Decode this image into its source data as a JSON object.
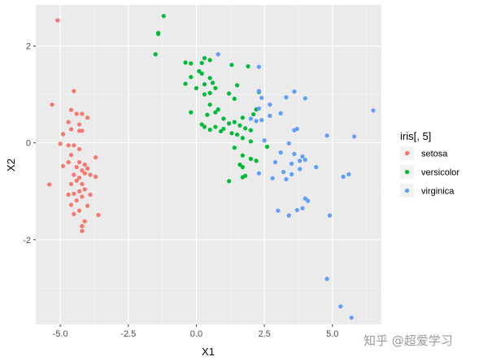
{
  "chart_data": {
    "type": "scatter",
    "xlabel": "X1",
    "ylabel": "X2",
    "xlim": [
      -5.9,
      6.8
    ],
    "ylim": [
      -3.75,
      2.85
    ],
    "xticks": [
      -5.0,
      -2.5,
      0.0,
      2.5,
      5.0
    ],
    "xtick_labels": [
      "-5.0",
      "-2.5",
      "0.0",
      "2.5",
      "5.0"
    ],
    "yticks": [
      -2,
      0,
      2
    ],
    "ytick_labels": [
      "-2",
      "0",
      "2"
    ],
    "grid": true,
    "background": "#ebebeb",
    "legend": {
      "title": "iris[, 5]",
      "position": "right"
    },
    "series": [
      {
        "name": "setosa",
        "color": "#f8766d",
        "points": [
          [
            -5.1,
            2.53
          ],
          [
            -4.5,
            1.07
          ],
          [
            -5.3,
            0.79
          ],
          [
            -4.6,
            0.68
          ],
          [
            -4.4,
            0.6
          ],
          [
            -4.2,
            0.6
          ],
          [
            -4.0,
            0.52
          ],
          [
            -4.7,
            0.43
          ],
          [
            -4.3,
            0.38
          ],
          [
            -4.6,
            0.28
          ],
          [
            -4.3,
            0.25
          ],
          [
            -4.2,
            0.25
          ],
          [
            -4.9,
            0.18
          ],
          [
            -5.0,
            -0.02
          ],
          [
            -4.7,
            -0.05
          ],
          [
            -4.5,
            -0.05
          ],
          [
            -4.3,
            -0.13
          ],
          [
            -4.6,
            -0.25
          ],
          [
            -3.7,
            -0.3
          ],
          [
            -4.7,
            -0.4
          ],
          [
            -4.3,
            -0.4
          ],
          [
            -4.1,
            -0.45
          ],
          [
            -4.9,
            -0.48
          ],
          [
            -4.4,
            -0.5
          ],
          [
            -4.0,
            -0.53
          ],
          [
            -4.2,
            -0.57
          ],
          [
            -4.5,
            -0.66
          ],
          [
            -4.1,
            -0.63
          ],
          [
            -3.9,
            -0.66
          ],
          [
            -3.7,
            -0.7
          ],
          [
            -4.3,
            -0.72
          ],
          [
            -4.4,
            -0.78
          ],
          [
            -4.2,
            -0.85
          ],
          [
            -4.6,
            -0.85
          ],
          [
            -5.4,
            -0.86
          ],
          [
            -4.1,
            -0.96
          ],
          [
            -4.3,
            -1.0
          ],
          [
            -4.5,
            -1.05
          ],
          [
            -4.7,
            -1.07
          ],
          [
            -3.9,
            -1.07
          ],
          [
            -4.2,
            -1.11
          ],
          [
            -4.4,
            -1.19
          ],
          [
            -4.6,
            -1.28
          ],
          [
            -4.0,
            -1.3
          ],
          [
            -4.3,
            -1.4
          ],
          [
            -4.5,
            -1.47
          ],
          [
            -3.6,
            -1.49
          ],
          [
            -4.1,
            -1.62
          ],
          [
            -4.2,
            -1.72
          ],
          [
            -4.2,
            -1.82
          ]
        ]
      },
      {
        "name": "versicolor",
        "color": "#00ba38",
        "points": [
          [
            -1.2,
            2.62
          ],
          [
            -1.4,
            2.25
          ],
          [
            -1.4,
            2.27
          ],
          [
            -1.5,
            1.83
          ],
          [
            0.3,
            1.75
          ],
          [
            0.5,
            1.71
          ],
          [
            -0.4,
            1.66
          ],
          [
            -0.2,
            1.64
          ],
          [
            0.2,
            1.65
          ],
          [
            1.9,
            1.58
          ],
          [
            1.3,
            1.61
          ],
          [
            0.1,
            1.48
          ],
          [
            -0.2,
            1.36
          ],
          [
            0.5,
            1.34
          ],
          [
            0.2,
            1.43
          ],
          [
            -0.4,
            1.22
          ],
          [
            0.3,
            1.21
          ],
          [
            0.6,
            1.24
          ],
          [
            0.7,
            1.13
          ],
          [
            1.5,
            1.19
          ],
          [
            0.0,
            1.13
          ],
          [
            0.3,
            1.0
          ],
          [
            0.5,
            1.03
          ],
          [
            1.2,
            1.02
          ],
          [
            1.4,
            0.91
          ],
          [
            2.3,
            1.05
          ],
          [
            0.5,
            0.79
          ],
          [
            0.8,
            0.69
          ],
          [
            0.7,
            0.63
          ],
          [
            -0.2,
            0.63
          ],
          [
            0.4,
            0.58
          ],
          [
            1.0,
            0.5
          ],
          [
            1.7,
            0.52
          ],
          [
            2.1,
            0.59
          ],
          [
            2.2,
            0.69
          ],
          [
            1.4,
            0.43
          ],
          [
            0.2,
            0.38
          ],
          [
            0.3,
            0.33
          ],
          [
            0.7,
            0.33
          ],
          [
            1.0,
            0.29
          ],
          [
            1.2,
            0.4
          ],
          [
            1.6,
            0.36
          ],
          [
            1.8,
            0.3
          ],
          [
            2.0,
            0.26
          ],
          [
            0.5,
            0.27
          ],
          [
            0.9,
            0.24
          ],
          [
            1.3,
            0.2
          ],
          [
            1.5,
            0.17
          ],
          [
            1.7,
            0.1
          ],
          [
            2.0,
            0.03
          ],
          [
            1.4,
            -0.1
          ],
          [
            2.6,
            -0.08
          ],
          [
            1.7,
            -0.26
          ],
          [
            2.0,
            -0.33
          ],
          [
            2.2,
            -0.37
          ],
          [
            1.6,
            -0.45
          ],
          [
            1.7,
            -0.5
          ],
          [
            1.8,
            -0.68
          ],
          [
            1.2,
            -0.79
          ],
          [
            1.7,
            -0.71
          ]
        ]
      },
      {
        "name": "virginica",
        "color": "#619cff",
        "points": [
          [
            0.8,
            1.83
          ],
          [
            2.3,
            1.57
          ],
          [
            3.6,
            1.06
          ],
          [
            2.3,
            1.07
          ],
          [
            2.4,
            0.93
          ],
          [
            3.3,
            0.94
          ],
          [
            4.0,
            0.92
          ],
          [
            2.7,
            0.79
          ],
          [
            6.5,
            0.67
          ],
          [
            2.3,
            0.71
          ],
          [
            2.7,
            0.56
          ],
          [
            3.1,
            0.61
          ],
          [
            2.0,
            0.5
          ],
          [
            2.4,
            0.47
          ],
          [
            2.2,
            0.45
          ],
          [
            3.6,
            0.26
          ],
          [
            3.7,
            0.29
          ],
          [
            4.8,
            0.15
          ],
          [
            5.8,
            0.13
          ],
          [
            2.5,
            0.05
          ],
          [
            3.4,
            -0.01
          ],
          [
            3.1,
            -0.2
          ],
          [
            3.6,
            -0.23
          ],
          [
            3.9,
            -0.28
          ],
          [
            4.0,
            -0.35
          ],
          [
            3.8,
            -0.37
          ],
          [
            2.9,
            -0.4
          ],
          [
            3.5,
            -0.43
          ],
          [
            3.8,
            -0.54
          ],
          [
            4.4,
            -0.5
          ],
          [
            3.5,
            -0.65
          ],
          [
            3.2,
            -0.6
          ],
          [
            2.3,
            -0.63
          ],
          [
            5.6,
            -0.65
          ],
          [
            5.4,
            -0.7
          ],
          [
            2.8,
            -0.73
          ],
          [
            3.3,
            -0.75
          ],
          [
            4.0,
            -1.15
          ],
          [
            4.1,
            -1.2
          ],
          [
            3.7,
            -1.39
          ],
          [
            3.0,
            -1.4
          ],
          [
            3.9,
            -1.35
          ],
          [
            3.4,
            -1.5
          ],
          [
            4.9,
            -1.5
          ],
          [
            4.8,
            -2.81
          ],
          [
            5.3,
            -3.38
          ],
          [
            5.7,
            -3.61
          ]
        ]
      }
    ]
  },
  "watermark": "知乎 @超爱学习"
}
